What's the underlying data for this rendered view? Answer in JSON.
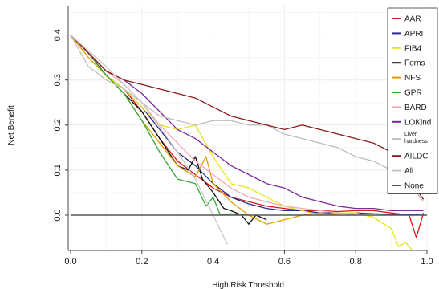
{
  "chart_data": {
    "type": "line",
    "title": "",
    "xlabel": "High Risk Threshold",
    "ylabel": "Net Benefit",
    "xlim": [
      0,
      1.0
    ],
    "ylim": [
      -0.065,
      0.43
    ],
    "x_ticks": [
      "0.0",
      "0.2",
      "0.4",
      "0.6",
      "0.8",
      "1.0"
    ],
    "y_ticks": [
      "0.0",
      "0.1",
      "0.2",
      "0.3",
      "0.4"
    ],
    "grid": true,
    "legend_position": "top-right",
    "series": [
      {
        "name": "AAR",
        "color": "#d7191c",
        "x": [
          0,
          0.05,
          0.1,
          0.15,
          0.2,
          0.25,
          0.3,
          0.35,
          0.4,
          0.45,
          0.5,
          0.55,
          0.6,
          0.65,
          0.7,
          0.75,
          0.8,
          0.85,
          0.9,
          0.95,
          0.97,
          0.99
        ],
        "y": [
          0.4,
          0.36,
          0.31,
          0.28,
          0.23,
          0.17,
          0.12,
          0.09,
          0.06,
          0.04,
          0.03,
          0.02,
          0.015,
          0.01,
          0.01,
          0.008,
          0.01,
          0.01,
          0.005,
          0.0,
          -0.05,
          0.005
        ]
      },
      {
        "name": "APRI",
        "color": "#2a2a8c",
        "x": [
          0,
          0.05,
          0.1,
          0.15,
          0.2,
          0.25,
          0.3,
          0.35,
          0.4,
          0.45,
          0.5,
          0.55,
          0.6,
          0.65,
          0.7,
          0.75,
          0.8,
          0.85,
          0.9,
          0.95,
          0.99
        ],
        "y": [
          0.4,
          0.36,
          0.31,
          0.28,
          0.24,
          0.19,
          0.14,
          0.11,
          0.07,
          0.04,
          0.025,
          0.015,
          0.01,
          0.01,
          0.005,
          0.005,
          0.005,
          0.003,
          0.002,
          0.001,
          0.0
        ]
      },
      {
        "name": "FIB4",
        "color": "#e6e619",
        "x": [
          0,
          0.05,
          0.1,
          0.15,
          0.2,
          0.25,
          0.3,
          0.35,
          0.4,
          0.45,
          0.5,
          0.55,
          0.6,
          0.65,
          0.7,
          0.75,
          0.8,
          0.85,
          0.9,
          0.92,
          0.94,
          0.96
        ],
        "y": [
          0.4,
          0.35,
          0.31,
          0.28,
          0.24,
          0.2,
          0.19,
          0.2,
          0.13,
          0.07,
          0.06,
          0.04,
          0.02,
          0.01,
          0.0,
          0.005,
          0.005,
          -0.005,
          -0.03,
          -0.07,
          -0.06,
          -0.08
        ]
      },
      {
        "name": "Forns",
        "color": "#111111",
        "x": [
          0,
          0.05,
          0.1,
          0.15,
          0.2,
          0.25,
          0.3,
          0.33,
          0.35,
          0.37,
          0.4,
          0.43,
          0.45,
          0.48,
          0.5,
          0.52,
          0.55
        ],
        "y": [
          0.4,
          0.36,
          0.31,
          0.27,
          0.23,
          0.17,
          0.11,
          0.1,
          0.13,
          0.08,
          0.05,
          0.015,
          0.01,
          0.0,
          -0.02,
          0.0,
          -0.01
        ]
      },
      {
        "name": "NFS",
        "color": "#e0a000",
        "x": [
          0,
          0.05,
          0.1,
          0.15,
          0.2,
          0.25,
          0.3,
          0.35,
          0.38,
          0.4,
          0.45,
          0.5,
          0.55,
          0.6,
          0.65,
          0.7,
          0.75
        ],
        "y": [
          0.4,
          0.35,
          0.31,
          0.27,
          0.21,
          0.16,
          0.11,
          0.085,
          0.13,
          0.07,
          0.03,
          0.0,
          -0.02,
          -0.01,
          0.0,
          0.005,
          0.0
        ]
      },
      {
        "name": "GPR",
        "color": "#33aa33",
        "x": [
          0,
          0.05,
          0.1,
          0.15,
          0.2,
          0.25,
          0.3,
          0.35,
          0.38,
          0.4,
          0.42,
          0.45,
          0.5
        ],
        "y": [
          0.4,
          0.36,
          0.31,
          0.27,
          0.21,
          0.14,
          0.08,
          0.07,
          0.02,
          0.04,
          0.0,
          0.003,
          0.0
        ]
      },
      {
        "name": "BARD",
        "color": "#f4a8b0",
        "x": [
          0,
          0.05,
          0.1,
          0.15,
          0.2,
          0.25,
          0.3,
          0.35,
          0.4,
          0.45,
          0.5,
          0.55,
          0.6,
          0.65,
          0.7,
          0.75,
          0.8
        ],
        "y": [
          0.4,
          0.36,
          0.32,
          0.29,
          0.25,
          0.2,
          0.16,
          0.12,
          0.09,
          0.06,
          0.04,
          0.03,
          0.02,
          0.015,
          0.01,
          0.005,
          0.0
        ]
      },
      {
        "name": "LOKind",
        "color": "#7b2a9a",
        "x": [
          0,
          0.05,
          0.1,
          0.15,
          0.2,
          0.25,
          0.3,
          0.35,
          0.4,
          0.45,
          0.5,
          0.55,
          0.6,
          0.65,
          0.7,
          0.75,
          0.8,
          0.85,
          0.9,
          0.95,
          0.99
        ],
        "y": [
          0.4,
          0.36,
          0.32,
          0.3,
          0.27,
          0.23,
          0.19,
          0.17,
          0.14,
          0.11,
          0.09,
          0.07,
          0.06,
          0.04,
          0.03,
          0.02,
          0.015,
          0.015,
          0.01,
          0.01,
          0.01
        ]
      },
      {
        "name": "Liver hardness",
        "color": "#bdbdbd",
        "x": [
          0,
          0.05,
          0.1,
          0.15,
          0.2,
          0.25,
          0.3,
          0.35,
          0.4,
          0.45,
          0.5,
          0.55,
          0.6,
          0.65,
          0.7,
          0.75,
          0.8,
          0.85,
          0.9,
          0.95,
          0.99
        ],
        "y": [
          0.4,
          0.33,
          0.3,
          0.28,
          0.25,
          0.22,
          0.21,
          0.2,
          0.21,
          0.21,
          0.2,
          0.2,
          0.18,
          0.17,
          0.16,
          0.15,
          0.13,
          0.12,
          0.1,
          0.07,
          0.03
        ]
      },
      {
        "name": "AILDC",
        "color": "#8b1a1a",
        "x": [
          0,
          0.05,
          0.1,
          0.15,
          0.2,
          0.25,
          0.3,
          0.35,
          0.4,
          0.45,
          0.5,
          0.55,
          0.6,
          0.65,
          0.7,
          0.75,
          0.8,
          0.85,
          0.9,
          0.95,
          0.99
        ],
        "y": [
          0.4,
          0.36,
          0.32,
          0.3,
          0.29,
          0.28,
          0.27,
          0.26,
          0.24,
          0.22,
          0.21,
          0.2,
          0.19,
          0.2,
          0.19,
          0.18,
          0.17,
          0.16,
          0.14,
          0.08,
          0.035
        ]
      },
      {
        "name": "All",
        "color": "#c8c8c8",
        "x": [
          0,
          0.1,
          0.2,
          0.3,
          0.35,
          0.4,
          0.44
        ],
        "y": [
          0.4,
          0.33,
          0.25,
          0.14,
          0.08,
          0.0,
          -0.065
        ]
      },
      {
        "name": "None",
        "color": "#555555",
        "x": [
          0,
          1.0
        ],
        "y": [
          0,
          0
        ]
      }
    ]
  }
}
